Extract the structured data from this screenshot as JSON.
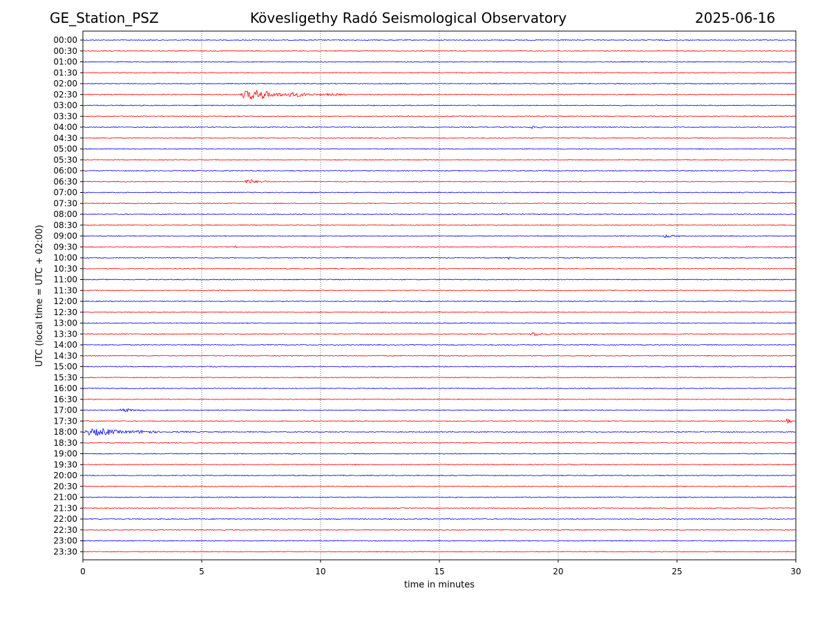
{
  "header": {
    "station": "GE_Station_PSZ",
    "observatory": "Kövesligethy Radó Seismological Observatory",
    "date": "2025-06-16"
  },
  "chart_data": {
    "type": "line",
    "title": "Kövesligethy Radó Seismological Observatory",
    "xlabel": "time in minutes",
    "ylabel": "UTC (local time = UTC + 02:00)",
    "xlim": [
      0,
      30
    ],
    "xticks": [
      "0",
      "5",
      "10",
      "15",
      "20",
      "25",
      "30"
    ],
    "grid": "vertical dotted at each x tick",
    "trace_colors": [
      "#0000ff",
      "#ff0000"
    ],
    "traces": [
      {
        "label": "00:00",
        "events": []
      },
      {
        "label": "00:30",
        "events": []
      },
      {
        "label": "01:00",
        "events": []
      },
      {
        "label": "01:30",
        "events": []
      },
      {
        "label": "02:00",
        "events": []
      },
      {
        "label": "02:30",
        "events": [
          {
            "start": 6.6,
            "end": 11.2,
            "amp": 7
          }
        ]
      },
      {
        "label": "03:00",
        "events": []
      },
      {
        "label": "03:30",
        "events": []
      },
      {
        "label": "04:00",
        "events": [
          {
            "start": 18.8,
            "end": 19.8,
            "amp": 2.5
          }
        ]
      },
      {
        "label": "04:30",
        "events": []
      },
      {
        "label": "05:00",
        "events": []
      },
      {
        "label": "05:30",
        "events": []
      },
      {
        "label": "06:00",
        "events": []
      },
      {
        "label": "06:30",
        "events": [
          {
            "start": 6.8,
            "end": 8.4,
            "amp": 3.5
          }
        ]
      },
      {
        "label": "07:00",
        "events": []
      },
      {
        "label": "07:30",
        "events": []
      },
      {
        "label": "08:00",
        "events": [
          {
            "start": 17.6,
            "end": 18.2,
            "amp": 1.5
          }
        ]
      },
      {
        "label": "08:30",
        "events": []
      },
      {
        "label": "09:00",
        "events": [
          {
            "start": 24.4,
            "end": 25.8,
            "amp": 2.5
          }
        ]
      },
      {
        "label": "09:30",
        "events": [
          {
            "start": 6.4,
            "end": 6.7,
            "amp": 2
          }
        ]
      },
      {
        "label": "10:00",
        "events": [
          {
            "start": 17.8,
            "end": 18.6,
            "amp": 2
          }
        ]
      },
      {
        "label": "10:30",
        "events": []
      },
      {
        "label": "11:00",
        "events": []
      },
      {
        "label": "11:30",
        "events": []
      },
      {
        "label": "12:00",
        "events": []
      },
      {
        "label": "12:30",
        "events": []
      },
      {
        "label": "13:00",
        "events": []
      },
      {
        "label": "13:30",
        "events": [
          {
            "start": 18.8,
            "end": 20.2,
            "amp": 3
          }
        ]
      },
      {
        "label": "14:00",
        "events": []
      },
      {
        "label": "14:30",
        "events": []
      },
      {
        "label": "15:00",
        "events": []
      },
      {
        "label": "15:30",
        "events": []
      },
      {
        "label": "16:00",
        "events": []
      },
      {
        "label": "16:30",
        "events": []
      },
      {
        "label": "17:00",
        "events": [
          {
            "start": 1.5,
            "end": 3.4,
            "amp": 2.5
          }
        ]
      },
      {
        "label": "17:30",
        "events": [
          {
            "start": 29.6,
            "end": 30,
            "amp": 4.5
          }
        ]
      },
      {
        "label": "18:00",
        "events": [
          {
            "start": 0,
            "end": 5.0,
            "amp": 5
          }
        ]
      },
      {
        "label": "18:30",
        "events": []
      },
      {
        "label": "19:00",
        "events": []
      },
      {
        "label": "19:30",
        "events": []
      },
      {
        "label": "20:00",
        "events": []
      },
      {
        "label": "20:30",
        "events": []
      },
      {
        "label": "21:00",
        "events": []
      },
      {
        "label": "21:30",
        "events": []
      },
      {
        "label": "22:00",
        "events": []
      },
      {
        "label": "22:30",
        "events": []
      },
      {
        "label": "23:00",
        "events": []
      },
      {
        "label": "23:30",
        "events": []
      }
    ]
  }
}
